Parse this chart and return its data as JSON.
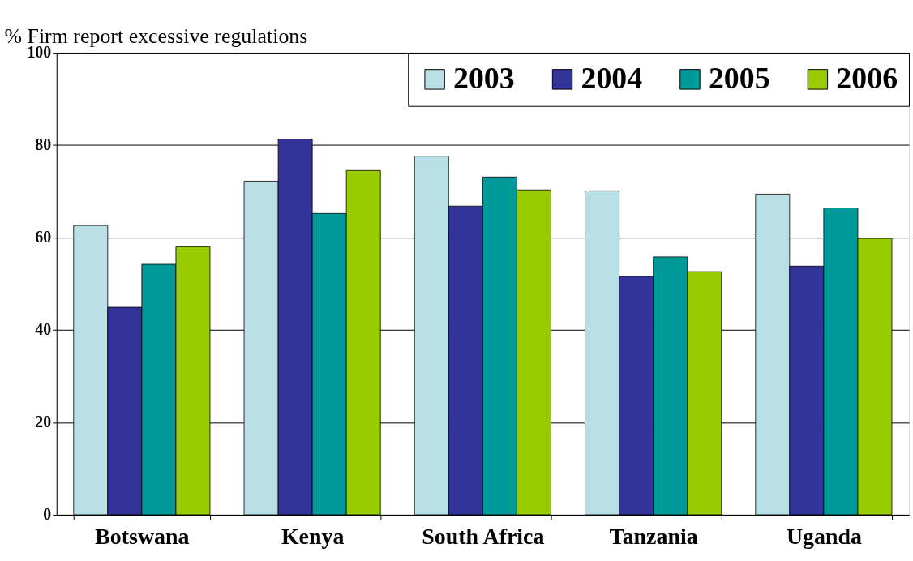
{
  "chart_data": {
    "type": "bar",
    "ylabel": "% Firm report excessive regulations",
    "categories": [
      "Botswana",
      "Kenya",
      "South Africa",
      "Tanzania",
      "Uganda"
    ],
    "series": [
      {
        "name": "2003",
        "color": "#b8e0e4",
        "values": [
          62.6,
          72.2,
          77.6,
          70.1,
          69.4
        ]
      },
      {
        "name": "2004",
        "color": "#333399",
        "values": [
          44.9,
          81.3,
          66.8,
          51.6,
          53.8
        ]
      },
      {
        "name": "2005",
        "color": "#009999",
        "values": [
          54.2,
          65.2,
          73.1,
          55.8,
          66.4
        ]
      },
      {
        "name": "2006",
        "color": "#99cc00",
        "values": [
          58.0,
          74.5,
          70.3,
          52.6,
          59.8
        ]
      }
    ],
    "ylim": [
      0,
      100
    ],
    "yticks": [
      0,
      20,
      40,
      60,
      80,
      100
    ],
    "grid": "y",
    "legend": "top right"
  }
}
